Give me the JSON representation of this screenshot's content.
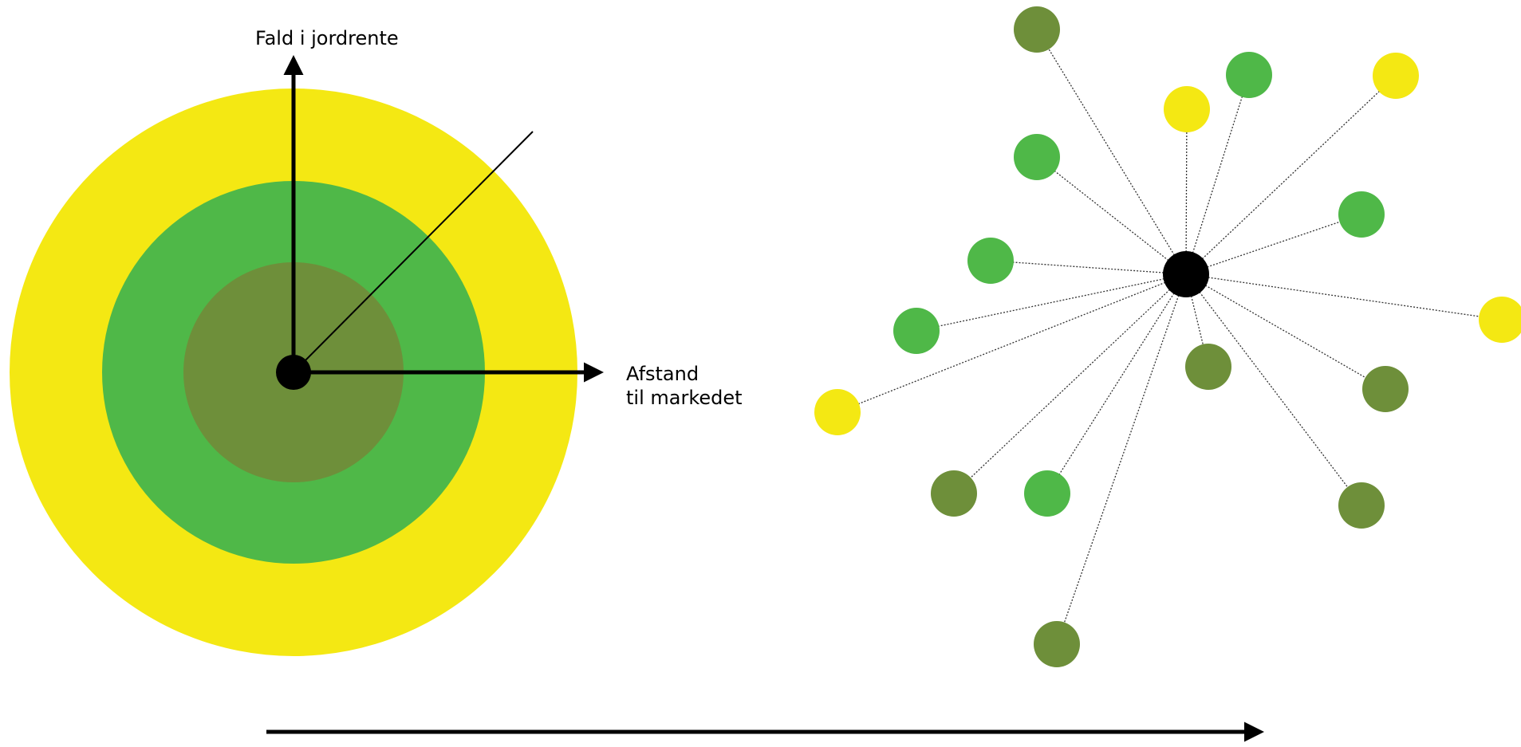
{
  "labels": {
    "y_axis": "Fald i jordrente",
    "x_axis_line1": "Afstand",
    "x_axis_line2": "til markedet"
  },
  "colors": {
    "yellow": "#f4e813",
    "green": "#4fb848",
    "olive": "#6e8f3a",
    "black": "#000000",
    "background": "#ffffff"
  },
  "concentric_model": {
    "rings": [
      {
        "zone": "outer",
        "color_key": "yellow"
      },
      {
        "zone": "middle",
        "color_key": "green"
      },
      {
        "zone": "inner",
        "color_key": "olive"
      }
    ],
    "center_node": "market"
  },
  "network_model": {
    "hub": "market",
    "nodes": [
      {
        "color_key": "olive"
      },
      {
        "color_key": "green"
      },
      {
        "color_key": "yellow"
      },
      {
        "color_key": "yellow"
      },
      {
        "color_key": "green"
      },
      {
        "color_key": "green"
      },
      {
        "color_key": "green"
      },
      {
        "color_key": "yellow"
      },
      {
        "color_key": "green"
      },
      {
        "color_key": "olive"
      },
      {
        "color_key": "olive"
      },
      {
        "color_key": "yellow"
      },
      {
        "color_key": "olive"
      },
      {
        "color_key": "green"
      },
      {
        "color_key": "olive"
      },
      {
        "color_key": "olive"
      }
    ]
  },
  "transition_arrow": {
    "direction": "left-to-right"
  }
}
